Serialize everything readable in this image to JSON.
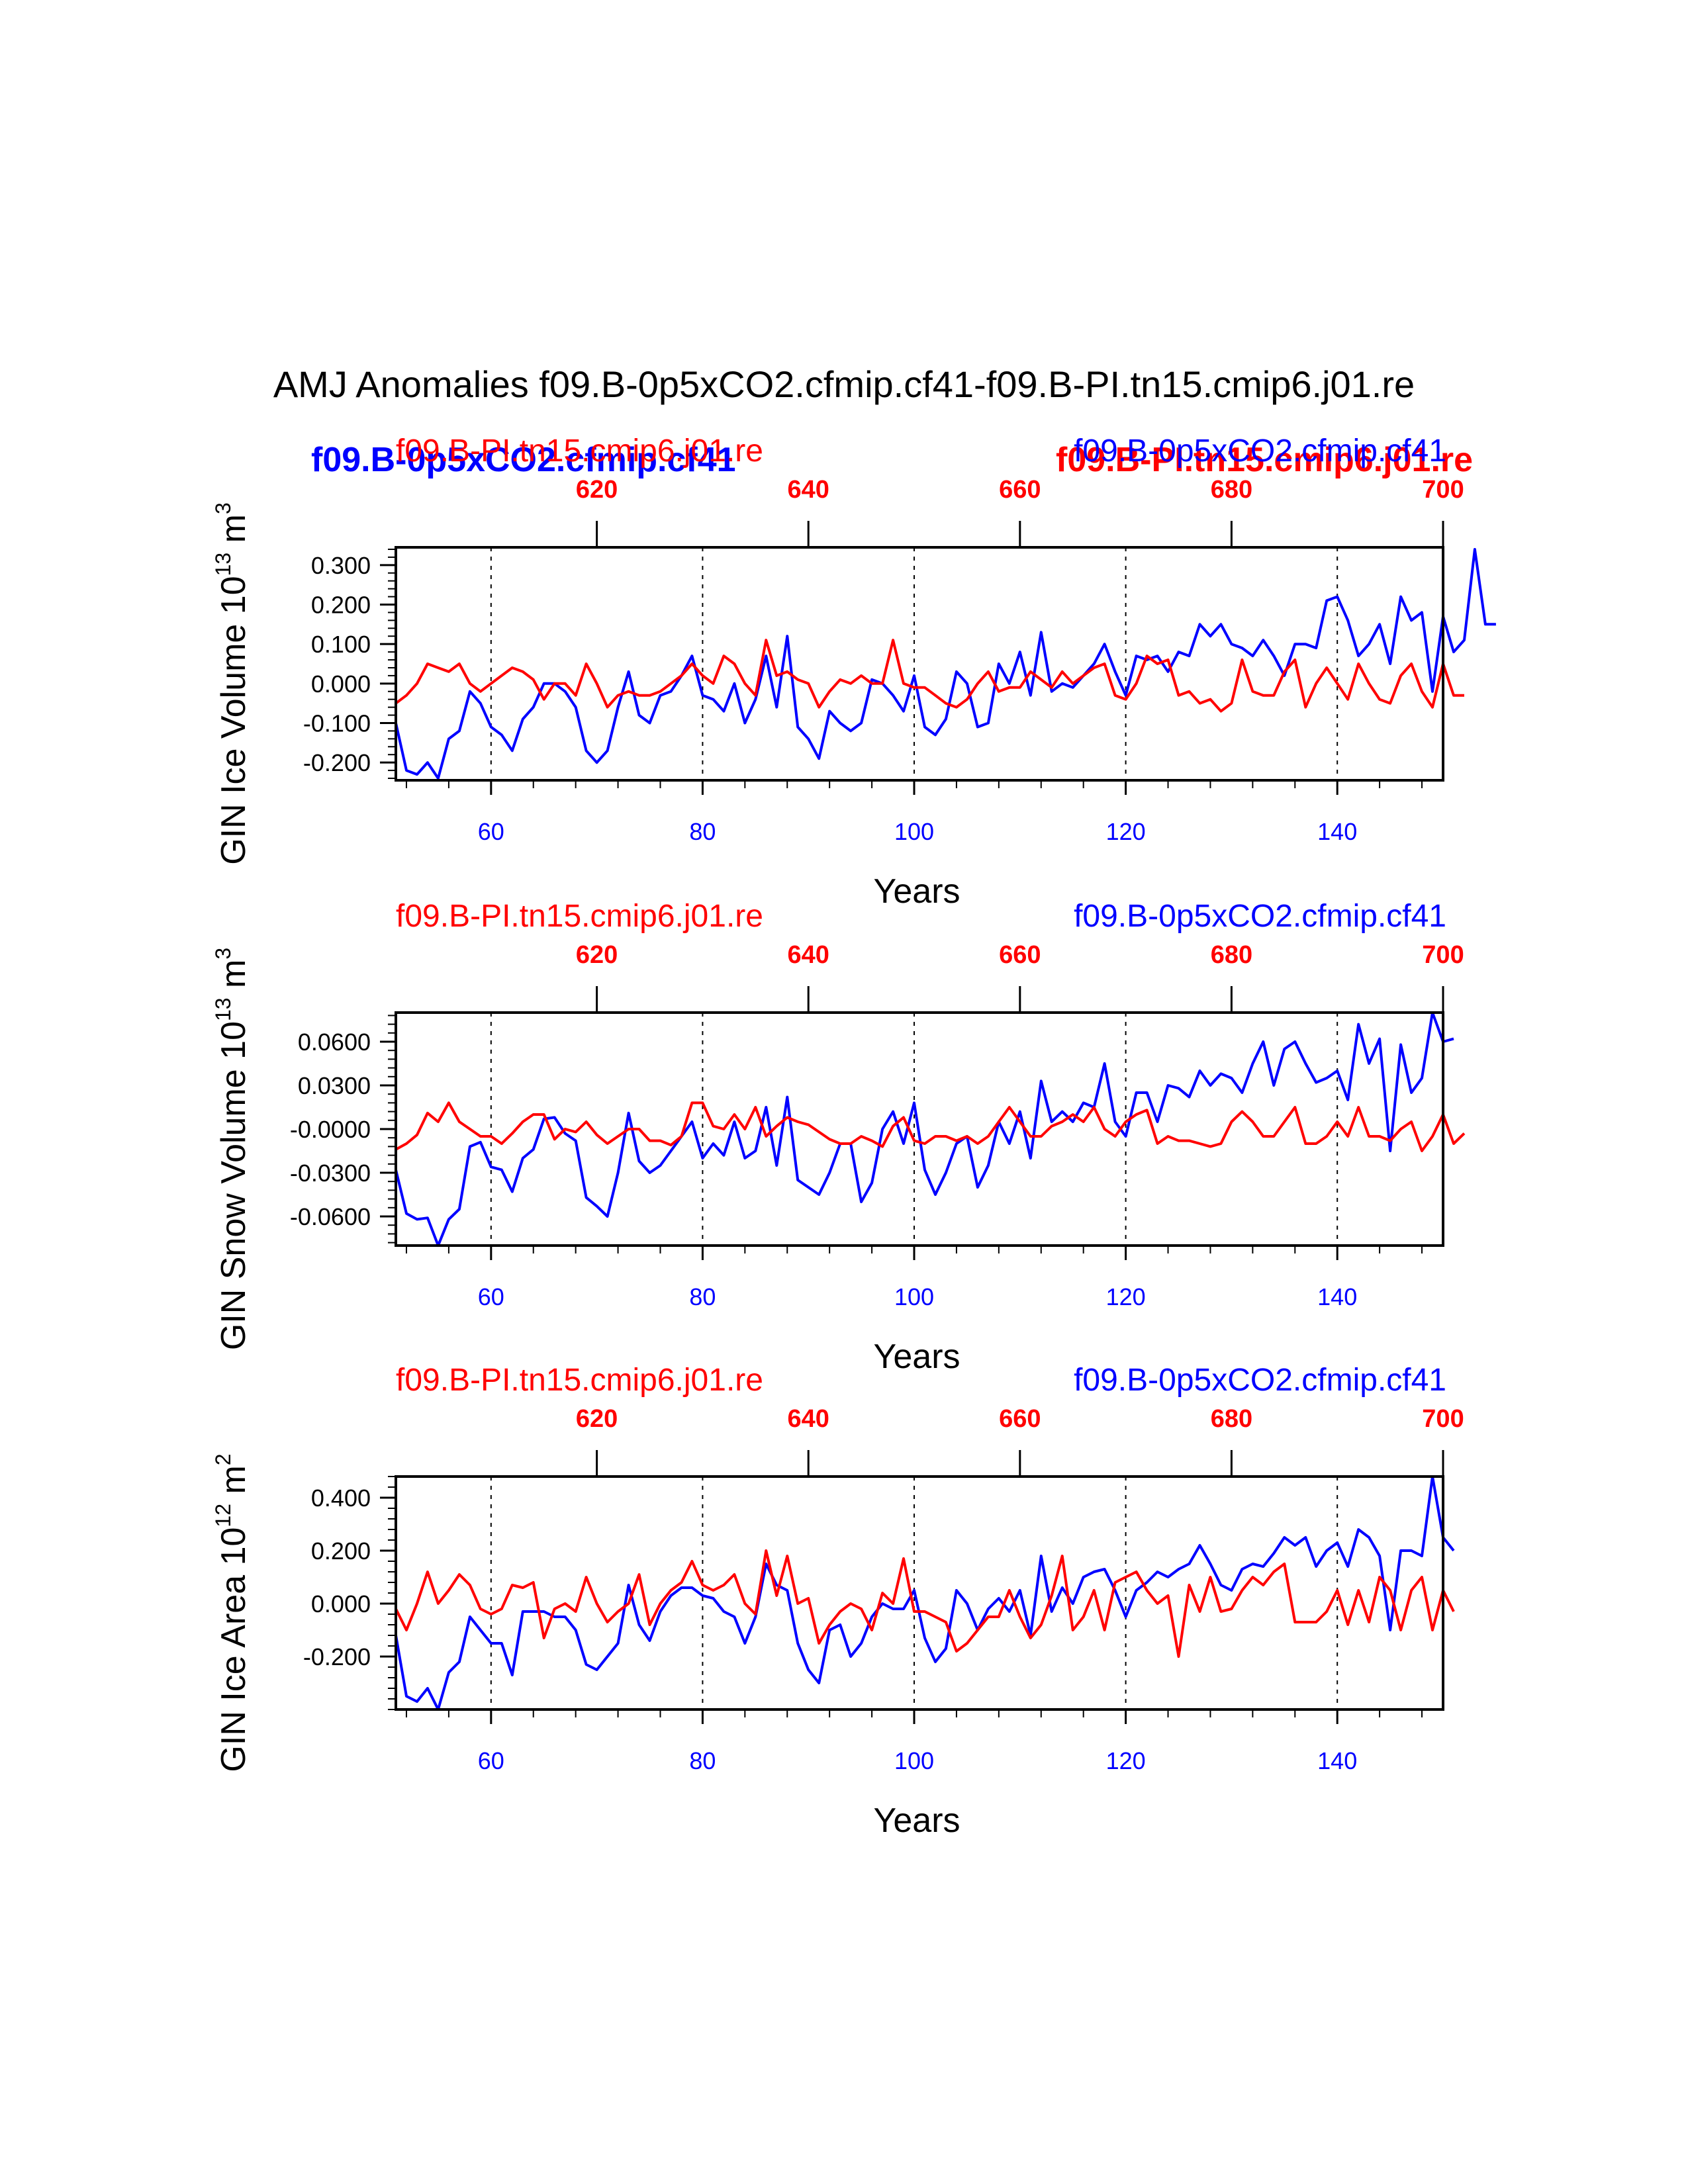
{
  "page_title": "AMJ Anomalies f09.B-0p5xCO2.cfmip.cf41-f09.B-PI.tn15.cmip6.j01.re",
  "legend": {
    "blue_bold": "f09.B-0p5xCO2.cfmip.cf41",
    "red_bold": "f09.B-PI.tn15.cmip6.j01.re"
  },
  "colors": {
    "blue": "#0000ff",
    "red": "#ff0000",
    "axis": "#000000"
  },
  "chart_data": [
    {
      "type": "line",
      "ylabel_main": "GIN Ice Volume 10",
      "ylabel_exp": "13",
      "ylabel_unit": " m",
      "ylabel_unit_exp": "3",
      "xlabel": "Years",
      "top_left_label": "f09.B-PI.tn15.cmip6.j01.re",
      "top_right_label": "f09.B-0p5xCO2.cfmip.cf41",
      "xlim": [
        51,
        150
      ],
      "ylim": [
        -0.245,
        0.345
      ],
      "bottom_ticks": [
        60,
        80,
        100,
        120,
        140
      ],
      "bottom_tick_labels": [
        "60",
        "80",
        "100",
        "120",
        "140"
      ],
      "top_tick_values": [
        620,
        640,
        660,
        680,
        700
      ],
      "top_tick_labels": [
        "620",
        "640",
        "660",
        "680",
        "700"
      ],
      "top_axis_offset": 550,
      "y_ticks": [
        0.3,
        0.2,
        0.1,
        0.0,
        -0.1,
        -0.2
      ],
      "y_tick_labels": [
        "0.300",
        "0.200",
        "0.100",
        "0.000",
        "-0.100",
        "-0.200"
      ],
      "y_minor_step": 0.02,
      "vlines": [
        60,
        80,
        100,
        120,
        140
      ],
      "series": [
        {
          "name": "f09.B-0p5xCO2.cfmip.cf41",
          "color": "blue",
          "x0": 51,
          "values": [
            -0.1,
            -0.22,
            -0.23,
            -0.2,
            -0.24,
            -0.14,
            -0.12,
            -0.02,
            -0.05,
            -0.11,
            -0.13,
            -0.17,
            -0.09,
            -0.06,
            0.0,
            0.0,
            -0.02,
            -0.06,
            -0.17,
            -0.2,
            -0.17,
            -0.06,
            0.03,
            -0.08,
            -0.1,
            -0.03,
            -0.02,
            0.02,
            0.07,
            -0.03,
            -0.04,
            -0.07,
            0.0,
            -0.1,
            -0.04,
            0.07,
            -0.06,
            0.12,
            -0.11,
            -0.14,
            -0.19,
            -0.07,
            -0.1,
            -0.12,
            -0.1,
            0.01,
            0.0,
            -0.03,
            -0.07,
            0.02,
            -0.11,
            -0.13,
            -0.09,
            0.03,
            0.0,
            -0.11,
            -0.1,
            0.05,
            0.0,
            0.08,
            -0.03,
            0.13,
            -0.02,
            0.0,
            -0.01,
            0.02,
            0.05,
            0.1,
            0.03,
            -0.03,
            0.07,
            0.06,
            0.07,
            0.03,
            0.08,
            0.07,
            0.15,
            0.12,
            0.15,
            0.1,
            0.09,
            0.07,
            0.11,
            0.07,
            0.02,
            0.1,
            0.1,
            0.09,
            0.21,
            0.22,
            0.16,
            0.07,
            0.1,
            0.15,
            0.05,
            0.22,
            0.16,
            0.18,
            -0.02,
            0.17,
            0.08,
            0.11,
            0.34,
            0.15,
            0.15
          ]
        },
        {
          "name": "f09.B-PI.tn15.cmip6.j01.re",
          "color": "red",
          "x0": 51,
          "values": [
            -0.05,
            -0.03,
            0.0,
            0.05,
            0.04,
            0.03,
            0.05,
            0.0,
            -0.02,
            0.0,
            0.02,
            0.04,
            0.03,
            0.01,
            -0.04,
            0.0,
            0.0,
            -0.03,
            0.05,
            0.0,
            -0.06,
            -0.03,
            -0.02,
            -0.03,
            -0.03,
            -0.02,
            0.0,
            0.02,
            0.05,
            0.02,
            0.0,
            0.07,
            0.05,
            0.0,
            -0.03,
            0.11,
            0.02,
            0.03,
            0.01,
            0.0,
            -0.06,
            -0.02,
            0.01,
            0.0,
            0.02,
            0.0,
            0.0,
            0.11,
            0.0,
            -0.01,
            -0.01,
            -0.03,
            -0.05,
            -0.06,
            -0.04,
            0.0,
            0.03,
            -0.02,
            -0.01,
            -0.01,
            0.03,
            0.01,
            -0.01,
            0.03,
            0.0,
            0.02,
            0.04,
            0.05,
            -0.03,
            -0.04,
            0.0,
            0.07,
            0.05,
            0.06,
            -0.03,
            -0.02,
            -0.05,
            -0.04,
            -0.07,
            -0.05,
            0.06,
            -0.02,
            -0.03,
            -0.03,
            0.03,
            0.06,
            -0.06,
            0.0,
            0.04,
            0.0,
            -0.04,
            0.05,
            0.0,
            -0.04,
            -0.05,
            0.02,
            0.05,
            -0.02,
            -0.06,
            0.05,
            -0.03,
            -0.03
          ]
        }
      ]
    },
    {
      "type": "line",
      "ylabel_main": "GIN Snow Volume 10",
      "ylabel_exp": "13",
      "ylabel_unit": " m",
      "ylabel_unit_exp": "3",
      "xlabel": "Years",
      "top_left_label": "f09.B-PI.tn15.cmip6.j01.re",
      "top_right_label": "f09.B-0p5xCO2.cfmip.cf41",
      "xlim": [
        51,
        150
      ],
      "ylim": [
        -0.08,
        0.08
      ],
      "bottom_ticks": [
        60,
        80,
        100,
        120,
        140
      ],
      "bottom_tick_labels": [
        "60",
        "80",
        "100",
        "120",
        "140"
      ],
      "top_tick_values": [
        620,
        640,
        660,
        680,
        700
      ],
      "top_tick_labels": [
        "620",
        "640",
        "660",
        "680",
        "700"
      ],
      "top_axis_offset": 550,
      "y_ticks": [
        0.06,
        0.03,
        0.0,
        -0.03,
        -0.06
      ],
      "y_tick_labels": [
        "0.0600",
        "0.0300",
        "-0.0000",
        "-0.0300",
        "-0.0600"
      ],
      "y_minor_step": 0.006,
      "vlines": [
        60,
        80,
        100,
        120,
        140
      ],
      "series": [
        {
          "name": "f09.B-0p5xCO2.cfmip.cf41",
          "color": "blue",
          "x0": 51,
          "values": [
            -0.028,
            -0.058,
            -0.062,
            -0.061,
            -0.08,
            -0.062,
            -0.055,
            -0.012,
            -0.009,
            -0.026,
            -0.028,
            -0.043,
            -0.02,
            -0.014,
            0.007,
            0.008,
            -0.003,
            -0.008,
            -0.047,
            -0.053,
            -0.06,
            -0.03,
            0.011,
            -0.022,
            -0.03,
            -0.025,
            -0.015,
            -0.005,
            0.005,
            -0.02,
            -0.01,
            -0.018,
            0.005,
            -0.02,
            -0.015,
            0.015,
            -0.025,
            0.022,
            -0.035,
            -0.04,
            -0.045,
            -0.03,
            -0.01,
            -0.01,
            -0.05,
            -0.037,
            0.0,
            0.012,
            -0.01,
            0.018,
            -0.028,
            -0.045,
            -0.03,
            -0.01,
            -0.005,
            -0.04,
            -0.025,
            0.005,
            -0.01,
            0.012,
            -0.02,
            0.033,
            0.005,
            0.012,
            0.005,
            0.018,
            0.015,
            0.045,
            0.005,
            -0.005,
            0.025,
            0.025,
            0.005,
            0.03,
            0.028,
            0.022,
            0.04,
            0.03,
            0.038,
            0.035,
            0.025,
            0.045,
            0.06,
            0.03,
            0.055,
            0.06,
            0.045,
            0.032,
            0.035,
            0.04,
            0.02,
            0.072,
            0.045,
            0.062,
            -0.015,
            0.058,
            0.025,
            0.035,
            0.08,
            0.06,
            0.062
          ]
        },
        {
          "name": "f09.B-PI.tn15.cmip6.j01.re",
          "color": "red",
          "x0": 51,
          "values": [
            -0.014,
            -0.01,
            -0.004,
            0.011,
            0.005,
            0.018,
            0.005,
            0.0,
            -0.005,
            -0.005,
            -0.01,
            -0.003,
            0.005,
            0.01,
            0.01,
            -0.007,
            0.0,
            -0.002,
            0.005,
            -0.004,
            -0.01,
            -0.005,
            0.0,
            0.0,
            -0.008,
            -0.008,
            -0.011,
            -0.005,
            0.018,
            0.018,
            0.002,
            0.0,
            0.01,
            0.0,
            0.015,
            -0.005,
            0.002,
            0.008,
            0.005,
            0.003,
            -0.002,
            -0.007,
            -0.01,
            -0.01,
            -0.005,
            -0.008,
            -0.012,
            0.002,
            0.008,
            -0.008,
            -0.01,
            -0.005,
            -0.005,
            -0.008,
            -0.005,
            -0.01,
            -0.005,
            0.005,
            0.015,
            0.005,
            -0.005,
            -0.005,
            0.002,
            0.005,
            0.01,
            0.005,
            0.015,
            0.0,
            -0.005,
            0.005,
            0.01,
            0.013,
            -0.01,
            -0.005,
            -0.008,
            -0.008,
            -0.01,
            -0.012,
            -0.01,
            0.005,
            0.012,
            0.005,
            -0.005,
            -0.005,
            0.005,
            0.015,
            -0.01,
            -0.01,
            -0.005,
            0.005,
            -0.005,
            0.015,
            -0.005,
            -0.005,
            -0.008,
            0.0,
            0.005,
            -0.015,
            -0.005,
            0.01,
            -0.01,
            -0.003
          ]
        }
      ]
    },
    {
      "type": "line",
      "ylabel_main": "GIN Ice Area 10",
      "ylabel_exp": "12",
      "ylabel_unit": " m",
      "ylabel_unit_exp": "2",
      "xlabel": "Years",
      "top_left_label": "f09.B-PI.tn15.cmip6.j01.re",
      "top_right_label": "f09.B-0p5xCO2.cfmip.cf41",
      "xlim": [
        51,
        150
      ],
      "ylim": [
        -0.4,
        0.48
      ],
      "bottom_ticks": [
        60,
        80,
        100,
        120,
        140
      ],
      "bottom_tick_labels": [
        "60",
        "80",
        "100",
        "120",
        "140"
      ],
      "top_tick_values": [
        620,
        640,
        660,
        680,
        700
      ],
      "top_tick_labels": [
        "620",
        "640",
        "660",
        "680",
        "700"
      ],
      "top_axis_offset": 550,
      "y_ticks": [
        0.4,
        0.2,
        0.0,
        -0.2
      ],
      "y_tick_labels": [
        "0.400",
        "0.200",
        "0.000",
        "-0.200"
      ],
      "y_minor_step": 0.04,
      "vlines": [
        60,
        80,
        100,
        120,
        140
      ],
      "series": [
        {
          "name": "f09.B-0p5xCO2.cfmip.cf41",
          "color": "blue",
          "x0": 51,
          "values": [
            -0.12,
            -0.35,
            -0.37,
            -0.32,
            -0.4,
            -0.26,
            -0.22,
            -0.05,
            -0.1,
            -0.15,
            -0.15,
            -0.27,
            -0.03,
            -0.03,
            -0.03,
            -0.05,
            -0.05,
            -0.1,
            -0.23,
            -0.25,
            -0.2,
            -0.15,
            0.07,
            -0.08,
            -0.14,
            -0.03,
            0.03,
            0.06,
            0.06,
            0.03,
            0.02,
            -0.03,
            -0.05,
            -0.15,
            -0.05,
            0.15,
            0.07,
            0.05,
            -0.15,
            -0.25,
            -0.3,
            -0.1,
            -0.08,
            -0.2,
            -0.15,
            -0.05,
            0.0,
            -0.02,
            -0.02,
            0.05,
            -0.13,
            -0.22,
            -0.17,
            0.05,
            0.0,
            -0.1,
            -0.02,
            0.02,
            -0.03,
            0.05,
            -0.12,
            0.18,
            -0.03,
            0.06,
            0.0,
            0.1,
            0.12,
            0.13,
            0.05,
            -0.05,
            0.05,
            0.08,
            0.12,
            0.1,
            0.13,
            0.15,
            0.22,
            0.15,
            0.07,
            0.05,
            0.13,
            0.15,
            0.14,
            0.19,
            0.25,
            0.22,
            0.25,
            0.14,
            0.2,
            0.23,
            0.14,
            0.28,
            0.25,
            0.18,
            -0.1,
            0.2,
            0.2,
            0.18,
            0.48,
            0.25,
            0.2
          ]
        },
        {
          "name": "f09.B-PI.tn15.cmip6.j01.re",
          "color": "red",
          "x0": 51,
          "values": [
            -0.02,
            -0.1,
            0.0,
            0.12,
            0.0,
            0.05,
            0.11,
            0.07,
            -0.02,
            -0.04,
            -0.02,
            0.07,
            0.06,
            0.08,
            -0.13,
            -0.02,
            0.0,
            -0.03,
            0.1,
            0.0,
            -0.07,
            -0.03,
            0.0,
            0.11,
            -0.08,
            0.0,
            0.05,
            0.08,
            0.16,
            0.07,
            0.05,
            0.07,
            0.11,
            0.0,
            -0.04,
            0.2,
            0.03,
            0.18,
            0.0,
            0.02,
            -0.15,
            -0.08,
            -0.03,
            0.0,
            -0.02,
            -0.1,
            0.04,
            0.0,
            0.17,
            -0.03,
            -0.03,
            -0.05,
            -0.07,
            -0.18,
            -0.15,
            -0.1,
            -0.05,
            -0.05,
            0.05,
            -0.05,
            -0.13,
            -0.08,
            0.03,
            0.18,
            -0.1,
            -0.05,
            0.05,
            -0.1,
            0.08,
            0.1,
            0.12,
            0.05,
            0.0,
            0.03,
            -0.2,
            0.07,
            -0.03,
            0.1,
            -0.03,
            -0.02,
            0.05,
            0.1,
            0.07,
            0.12,
            0.15,
            -0.07,
            -0.07,
            -0.07,
            -0.03,
            0.05,
            -0.08,
            0.05,
            -0.07,
            0.1,
            0.05,
            -0.1,
            0.05,
            0.1,
            -0.1,
            0.05,
            -0.03
          ]
        }
      ]
    }
  ]
}
